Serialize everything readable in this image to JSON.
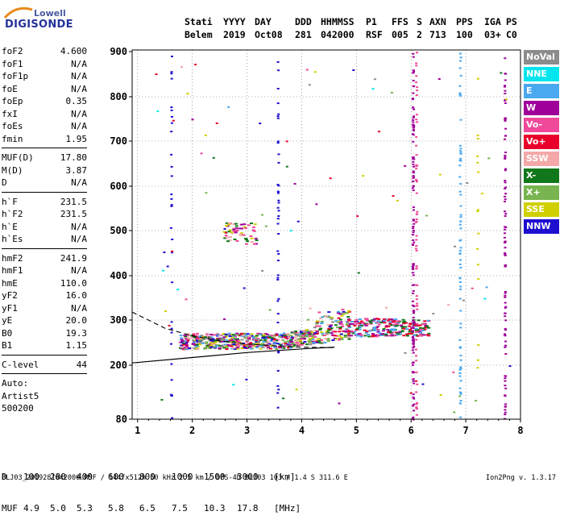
{
  "logo": {
    "line1": "Lowell",
    "line2": "DIGISONDE"
  },
  "header": {
    "labels": [
      "Stati",
      "YYYY",
      "DAY",
      "DDD",
      "HHMMSS",
      "P1",
      "FFS",
      "S",
      "AXN",
      "PPS",
      "IGA",
      "PS"
    ],
    "values": [
      "Belem",
      "2019",
      "Oct08",
      "281",
      "042000",
      "RSF",
      "005",
      "2",
      "713",
      "100",
      "03+",
      "C0"
    ]
  },
  "params": {
    "group1": [
      {
        "name": "foF2",
        "value": "4.600"
      },
      {
        "name": "foF1",
        "value": "N/A"
      },
      {
        "name": "foF1p",
        "value": "N/A"
      },
      {
        "name": "foE",
        "value": "N/A"
      },
      {
        "name": "foEp",
        "value": "0.35"
      },
      {
        "name": "fxI",
        "value": "N/A"
      },
      {
        "name": "foEs",
        "value": "N/A"
      },
      {
        "name": "fmin",
        "value": "1.95"
      }
    ],
    "group2": [
      {
        "name": "MUF(D)",
        "value": "17.80"
      },
      {
        "name": "M(D)",
        "value": "3.87"
      },
      {
        "name": "D",
        "value": "N/A"
      }
    ],
    "group3": [
      {
        "name": "h`F",
        "value": "231.5"
      },
      {
        "name": "h`F2",
        "value": "231.5"
      },
      {
        "name": "h`E",
        "value": "N/A"
      },
      {
        "name": "h`Es",
        "value": "N/A"
      }
    ],
    "group4": [
      {
        "name": "hmF2",
        "value": "241.9"
      },
      {
        "name": "hmF1",
        "value": "N/A"
      },
      {
        "name": "hmE",
        "value": "110.0"
      },
      {
        "name": "yF2",
        "value": "16.0"
      },
      {
        "name": "yF1",
        "value": "N/A"
      },
      {
        "name": "yE",
        "value": "20.0"
      },
      {
        "name": "B0",
        "value": "19.3"
      },
      {
        "name": "B1",
        "value": "1.15"
      }
    ],
    "clevel": {
      "name": "C-level",
      "value": "44"
    },
    "auto": [
      "Auto:",
      "Artist5",
      "500200"
    ]
  },
  "legend": [
    {
      "label": "NoVal",
      "color": "#8c8c8c"
    },
    {
      "label": "NNE",
      "color": "#00e5ee"
    },
    {
      "label": "E",
      "color": "#4aa8f0"
    },
    {
      "label": "W",
      "color": "#a0009a"
    },
    {
      "label": "Vo-",
      "color": "#f0489a"
    },
    {
      "label": "Vo+",
      "color": "#e8002a"
    },
    {
      "label": "SSW",
      "color": "#f4a8a8"
    },
    {
      "label": "X-",
      "color": "#10781a"
    },
    {
      "label": "X+",
      "color": "#78b450"
    },
    {
      "label": "SSE",
      "color": "#d0d000"
    },
    {
      "label": "NNW",
      "color": "#1e0ed0"
    }
  ],
  "chart_data": {
    "type": "scatter",
    "x_ticks": [
      "1",
      "2",
      "3",
      "4",
      "5",
      "6",
      "7",
      "8"
    ],
    "y_ticks": [
      "80",
      "200",
      "300",
      "400",
      "500",
      "600",
      "700",
      "800",
      "900"
    ],
    "xlim": [
      0.9,
      8.0
    ],
    "ylim": [
      80,
      900
    ],
    "y_scale": "nonlinear",
    "grid": "dotted",
    "trace_solid": [
      [
        0.9,
        205
      ],
      [
        2.0,
        217
      ],
      [
        3.0,
        228
      ],
      [
        4.0,
        236
      ],
      [
        4.6,
        240
      ]
    ],
    "trace_dashed": [
      [
        0.9,
        318
      ],
      [
        1.5,
        282
      ],
      [
        2.0,
        265
      ],
      [
        2.5,
        254
      ],
      [
        3.0,
        247
      ],
      [
        3.5,
        243
      ],
      [
        4.0,
        240
      ],
      [
        4.6,
        239
      ]
    ]
  },
  "maxtab": {
    "row1_label": "D",
    "row1_values": [
      "100",
      "200",
      "400",
      "600",
      "800",
      "1000",
      "1500",
      "3000",
      "[km]"
    ],
    "row2_label": "MUF",
    "row2_values": [
      "4.9",
      "5.0",
      "5.3",
      "5.8",
      "6.5",
      "7.5",
      "10.3",
      "17.8",
      "[MHz]"
    ]
  },
  "footer": {
    "left": "BLJ03_2019281042000.RSF / 144fx512h 50 kHz 2.5 km / DPS-4D BLJ03 103 / 1.4 S 311.6 E",
    "right": "Ion2Png v. 1.3.17"
  }
}
